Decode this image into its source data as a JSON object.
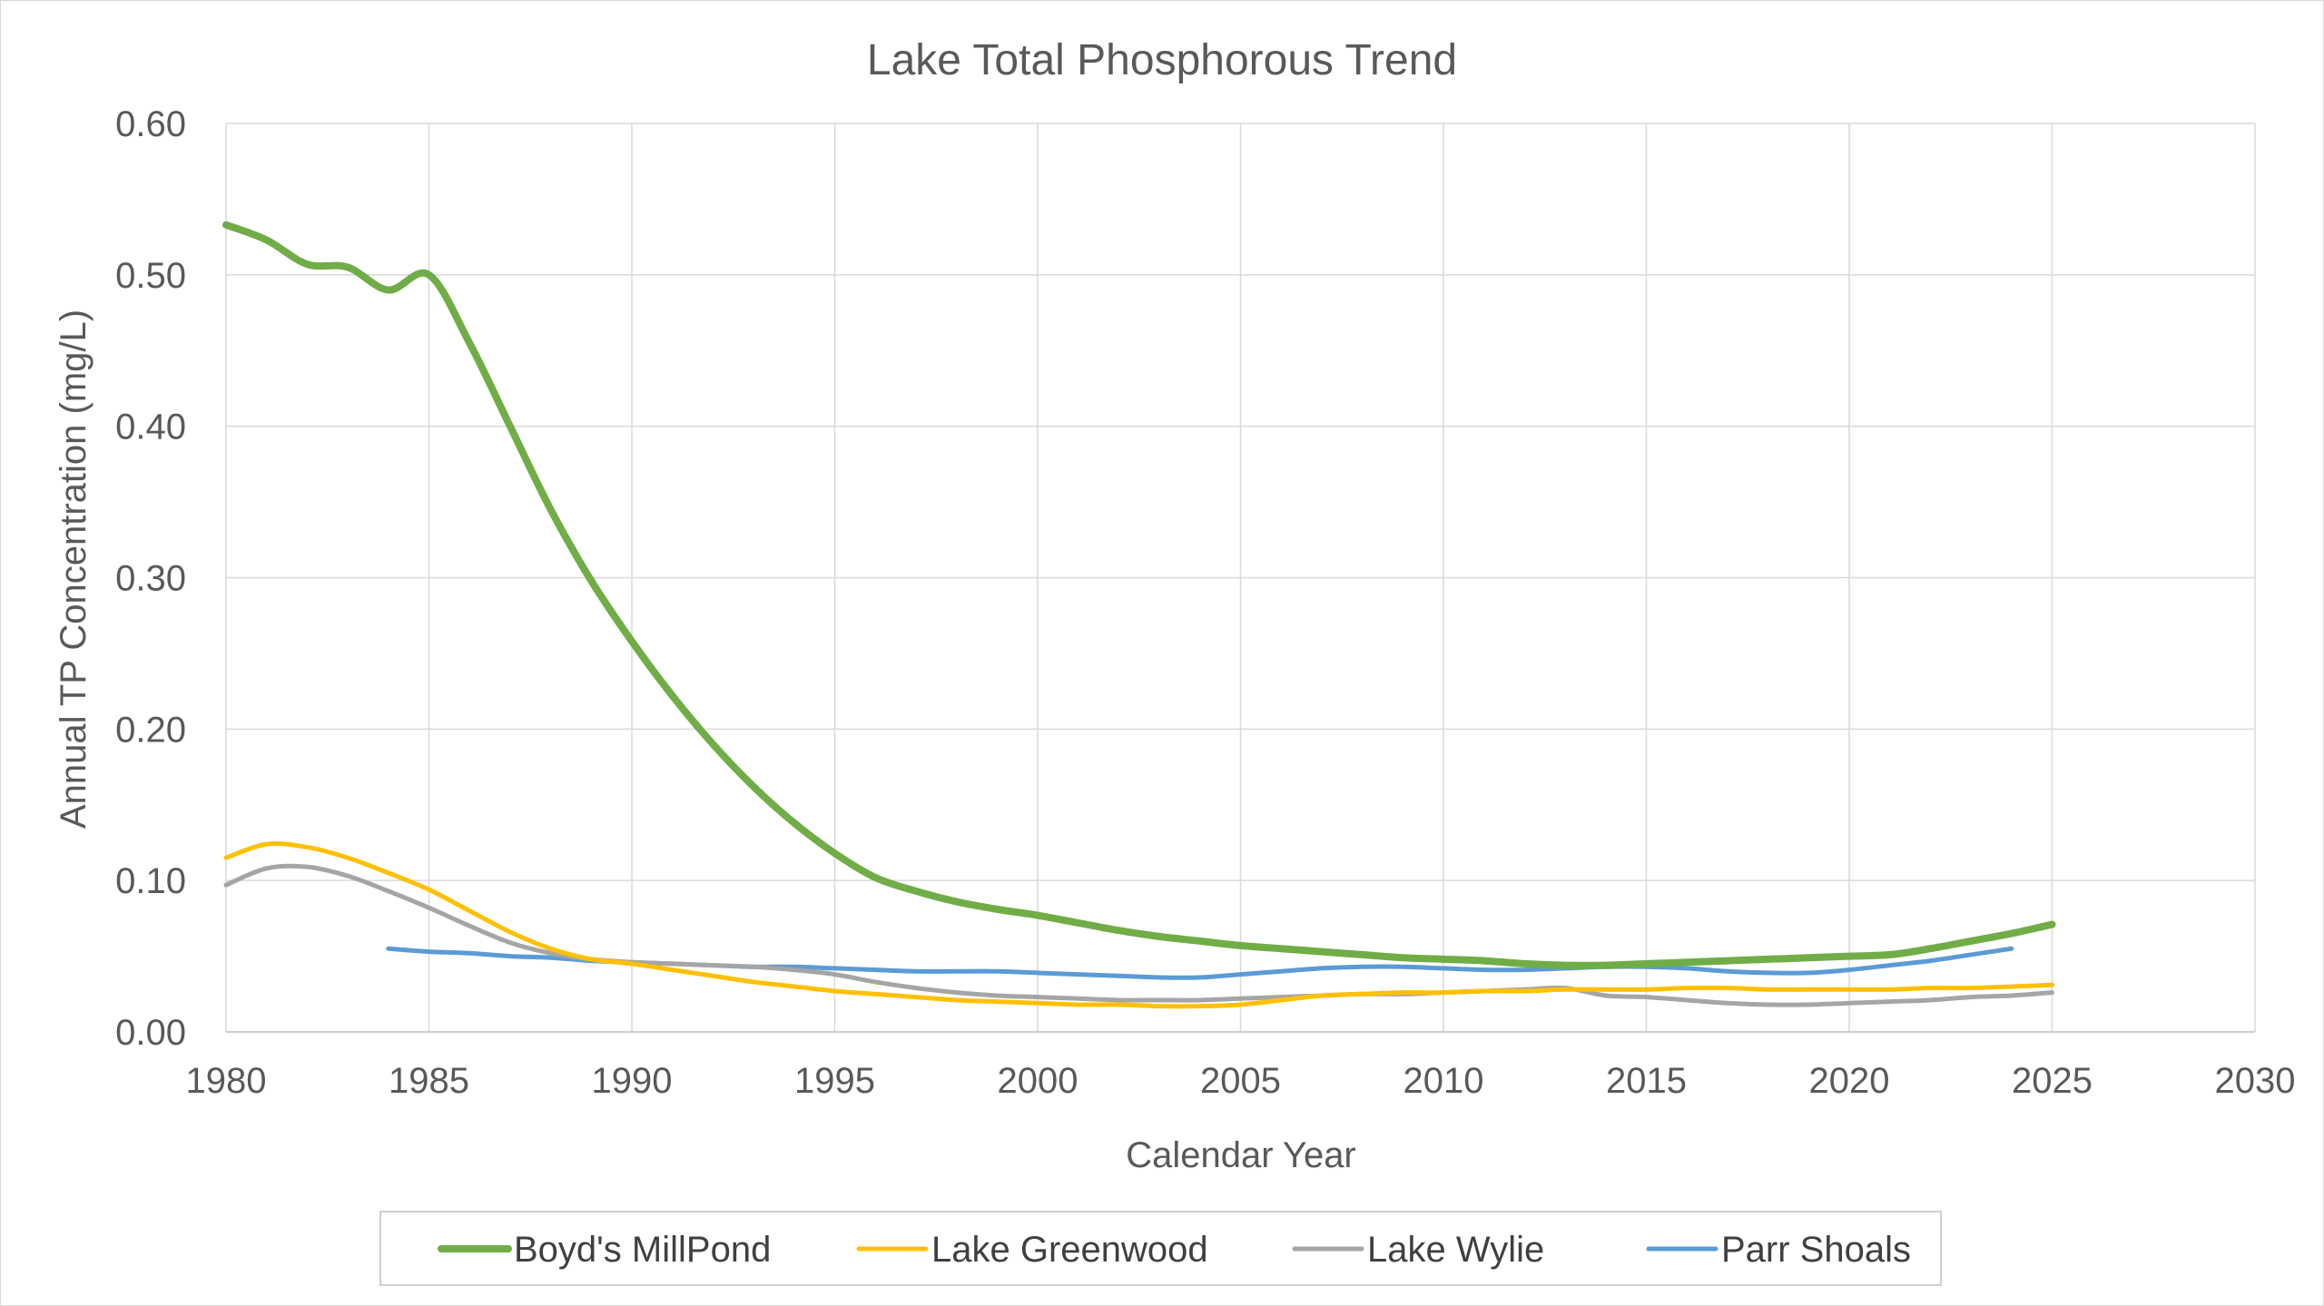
{
  "chart_data": {
    "type": "line",
    "title": "Lake Total Phosphorous Trend",
    "xlabel": "Calendar Year",
    "ylabel": "Annual TP Concentration (mg/L)",
    "xlim": [
      1980,
      2030
    ],
    "ylim": [
      0,
      0.6
    ],
    "x_ticks": [
      1980,
      1985,
      1990,
      1995,
      2000,
      2005,
      2010,
      2015,
      2020,
      2025,
      2030
    ],
    "y_ticks": [
      0,
      0.1,
      0.2,
      0.3,
      0.4,
      0.5,
      0.6
    ],
    "y_tick_labels": [
      "0.00",
      "0.10",
      "0.20",
      "0.30",
      "0.40",
      "0.50",
      "0.60"
    ],
    "grid": true,
    "legend_position": "bottom",
    "series": [
      {
        "name": "Boyd's MillPond",
        "color": "#70ad47",
        "x": [
          1980,
          1981,
          1982,
          1983,
          1984,
          1985,
          1986,
          1987,
          1988,
          1989,
          1990,
          1991,
          1992,
          1993,
          1994,
          1995,
          1996,
          1997,
          1998,
          1999,
          2000,
          2001,
          2002,
          2003,
          2004,
          2005,
          2006,
          2007,
          2008,
          2009,
          2010,
          2011,
          2012,
          2013,
          2014,
          2015,
          2016,
          2017,
          2018,
          2019,
          2020,
          2021,
          2022,
          2023,
          2024,
          2025
        ],
        "y": [
          0.533,
          0.523,
          0.507,
          0.505,
          0.49,
          0.5,
          0.455,
          0.4,
          0.345,
          0.298,
          0.258,
          0.222,
          0.19,
          0.162,
          0.138,
          0.118,
          0.102,
          0.093,
          0.086,
          0.081,
          0.077,
          0.072,
          0.067,
          0.063,
          0.06,
          0.057,
          0.055,
          0.053,
          0.051,
          0.049,
          0.048,
          0.047,
          0.045,
          0.044,
          0.044,
          0.045,
          0.046,
          0.047,
          0.048,
          0.049,
          0.05,
          0.051,
          0.055,
          0.06,
          0.065,
          0.071
        ]
      },
      {
        "name": "Lake Greenwood",
        "color": "#ffc000",
        "x": [
          1980,
          1981,
          1982,
          1983,
          1984,
          1985,
          1986,
          1987,
          1988,
          1989,
          1990,
          1991,
          1992,
          1993,
          1994,
          1995,
          1996,
          1997,
          1998,
          1999,
          2000,
          2001,
          2002,
          2003,
          2004,
          2005,
          2006,
          2007,
          2008,
          2009,
          2010,
          2011,
          2012,
          2013,
          2014,
          2015,
          2016,
          2017,
          2018,
          2019,
          2020,
          2021,
          2022,
          2023,
          2024,
          2025
        ],
        "y": [
          0.115,
          0.124,
          0.122,
          0.115,
          0.105,
          0.094,
          0.08,
          0.066,
          0.055,
          0.048,
          0.045,
          0.041,
          0.037,
          0.033,
          0.03,
          0.027,
          0.025,
          0.023,
          0.021,
          0.02,
          0.019,
          0.018,
          0.018,
          0.017,
          0.017,
          0.018,
          0.021,
          0.024,
          0.025,
          0.026,
          0.026,
          0.027,
          0.027,
          0.028,
          0.028,
          0.028,
          0.029,
          0.029,
          0.028,
          0.028,
          0.028,
          0.028,
          0.029,
          0.029,
          0.03,
          0.031
        ]
      },
      {
        "name": "Lake Wylie",
        "color": "#a5a5a5",
        "x": [
          1980,
          1981,
          1982,
          1983,
          1984,
          1985,
          1986,
          1987,
          1988,
          1989,
          1990,
          1991,
          1992,
          1993,
          1994,
          1995,
          1996,
          1997,
          1998,
          1999,
          2000,
          2001,
          2002,
          2003,
          2004,
          2005,
          2006,
          2007,
          2008,
          2009,
          2010,
          2011,
          2012,
          2013,
          2014,
          2015,
          2016,
          2017,
          2018,
          2019,
          2020,
          2021,
          2022,
          2023,
          2024,
          2025
        ],
        "y": [
          0.097,
          0.108,
          0.109,
          0.103,
          0.093,
          0.082,
          0.07,
          0.059,
          0.052,
          0.048,
          0.046,
          0.045,
          0.044,
          0.043,
          0.041,
          0.038,
          0.033,
          0.029,
          0.026,
          0.024,
          0.023,
          0.022,
          0.021,
          0.021,
          0.021,
          0.022,
          0.023,
          0.024,
          0.025,
          0.025,
          0.026,
          0.027,
          0.028,
          0.029,
          0.024,
          0.023,
          0.021,
          0.019,
          0.018,
          0.018,
          0.019,
          0.02,
          0.021,
          0.023,
          0.024,
          0.026
        ]
      },
      {
        "name": "Parr Shoals",
        "color": "#5b9bd5",
        "x": [
          1984,
          1985,
          1986,
          1987,
          1988,
          1989,
          1990,
          1991,
          1992,
          1993,
          1994,
          1995,
          1996,
          1997,
          1998,
          1999,
          2000,
          2001,
          2002,
          2003,
          2004,
          2005,
          2006,
          2007,
          2008,
          2009,
          2010,
          2011,
          2012,
          2013,
          2014,
          2015,
          2016,
          2017,
          2018,
          2019,
          2020,
          2021,
          2022,
          2023,
          2024
        ],
        "y": [
          0.055,
          0.053,
          0.052,
          0.05,
          0.049,
          0.047,
          0.046,
          0.045,
          0.044,
          0.043,
          0.043,
          0.042,
          0.041,
          0.04,
          0.04,
          0.04,
          0.039,
          0.038,
          0.037,
          0.036,
          0.036,
          0.038,
          0.04,
          0.042,
          0.043,
          0.043,
          0.042,
          0.041,
          0.041,
          0.042,
          0.043,
          0.043,
          0.042,
          0.04,
          0.039,
          0.039,
          0.041,
          0.044,
          0.047,
          0.051,
          0.055
        ]
      }
    ]
  }
}
